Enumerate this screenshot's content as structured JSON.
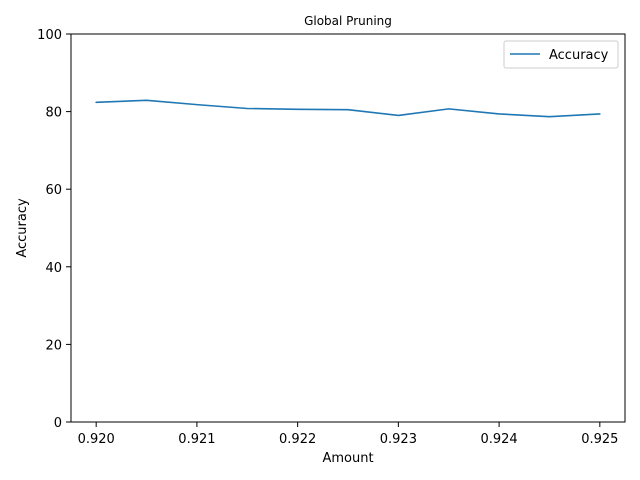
{
  "chart_data": {
    "type": "line",
    "title": "Global Pruning",
    "xlabel": "Amount",
    "ylabel": "Accuracy",
    "x": [
      0.92,
      0.9205,
      0.921,
      0.9215,
      0.922,
      0.9225,
      0.923,
      0.9235,
      0.924,
      0.9245,
      0.925
    ],
    "series": [
      {
        "name": "Accuracy",
        "color": "#1f77b4",
        "values": [
          82.4,
          82.9,
          81.8,
          80.8,
          80.6,
          80.5,
          79.0,
          80.7,
          79.4,
          78.7,
          79.4
        ]
      }
    ],
    "xlim": [
      0.91975,
      0.92525
    ],
    "ylim": [
      0,
      100
    ],
    "xticks": [
      "0.920",
      "0.921",
      "0.922",
      "0.923",
      "0.924",
      "0.925"
    ],
    "xtick_values": [
      0.92,
      0.921,
      0.922,
      0.923,
      0.924,
      0.925
    ],
    "yticks": [
      "0",
      "20",
      "40",
      "60",
      "80",
      "100"
    ],
    "ytick_values": [
      0,
      20,
      40,
      60,
      80,
      100
    ],
    "grid": false,
    "legend_position": "top-right"
  }
}
